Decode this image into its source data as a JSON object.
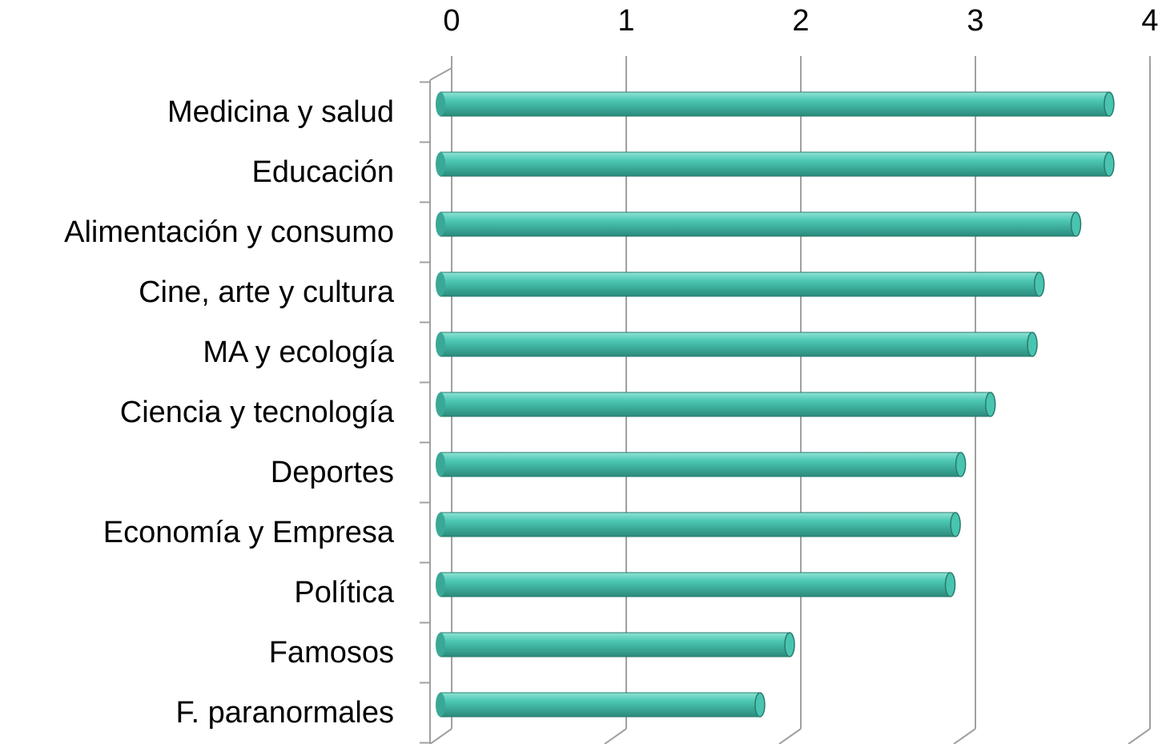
{
  "chart_data": {
    "type": "bar",
    "orientation": "horizontal",
    "categories": [
      "Medicina y salud",
      "Educación",
      "Alimentación y consumo",
      "Cine, arte y cultura",
      "MA y ecología",
      "Ciencia y tecnología",
      "Deportes",
      "Economía y Empresa",
      "Política",
      "Famosos",
      "F. paranormales"
    ],
    "values": [
      3.83,
      3.83,
      3.64,
      3.43,
      3.39,
      3.15,
      2.98,
      2.95,
      2.92,
      2.0,
      1.83
    ],
    "color": "#48c4b0",
    "xlim": [
      0,
      4
    ],
    "xticks": [
      0,
      1,
      2,
      3,
      4
    ],
    "grid": true
  }
}
